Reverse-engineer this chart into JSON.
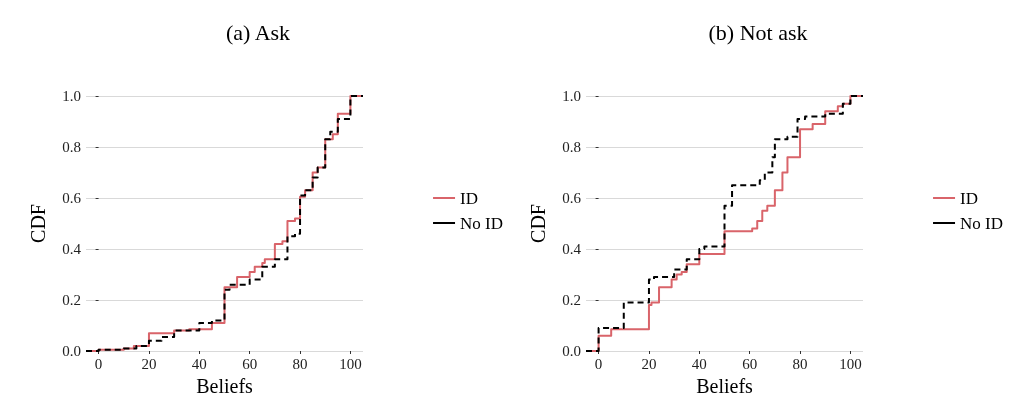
{
  "chart_data": [
    {
      "type": "step",
      "title": "(a) Ask",
      "xlabel": "Beliefs",
      "ylabel": "CDF",
      "xlim": [
        -5,
        105
      ],
      "xticks": [
        0,
        20,
        40,
        60,
        80,
        100
      ],
      "ylim": [
        0,
        1
      ],
      "yticks": [
        {
          "value": 0,
          "label": "0.0"
        },
        {
          "value": 0.2,
          "label": "0.2"
        },
        {
          "value": 0.4,
          "label": "0.4"
        },
        {
          "value": 0.6,
          "label": "0.6"
        },
        {
          "value": 0.8,
          "label": "0.8"
        },
        {
          "value": 1,
          "label": "1.0"
        }
      ],
      "grid": "y",
      "legend": "right",
      "series": [
        {
          "name": "ID",
          "color": "#d9646a",
          "line_style": "solid",
          "x": [
            -5,
            0,
            10,
            14,
            20,
            30,
            36,
            45,
            50,
            55,
            60,
            62,
            65,
            66,
            70,
            73,
            75,
            78,
            80,
            82,
            85,
            87,
            90,
            93,
            95,
            100,
            105
          ],
          "values": [
            0,
            0.005,
            0.01,
            0.02,
            0.07,
            0.08,
            0.085,
            0.11,
            0.25,
            0.29,
            0.31,
            0.33,
            0.345,
            0.36,
            0.42,
            0.43,
            0.51,
            0.52,
            0.605,
            0.63,
            0.7,
            0.72,
            0.83,
            0.85,
            0.93,
            1,
            1
          ]
        },
        {
          "name": "No ID",
          "color": "#000000",
          "line_style": "dashed",
          "x": [
            -5,
            0,
            10,
            15,
            20,
            25,
            30,
            40,
            45,
            50,
            52,
            60,
            65,
            70,
            75,
            78,
            80,
            82,
            85,
            87,
            90,
            92,
            95,
            100,
            105
          ],
          "values": [
            0,
            0.005,
            0.01,
            0.02,
            0.04,
            0.055,
            0.08,
            0.11,
            0.12,
            0.24,
            0.26,
            0.28,
            0.33,
            0.36,
            0.45,
            0.46,
            0.61,
            0.63,
            0.68,
            0.72,
            0.83,
            0.86,
            0.91,
            1,
            1
          ]
        }
      ]
    },
    {
      "type": "step",
      "title": "(b) Not ask",
      "xlabel": "Beliefs",
      "ylabel": "CDF",
      "xlim": [
        -5,
        105
      ],
      "xticks": [
        0,
        20,
        40,
        60,
        80,
        100
      ],
      "ylim": [
        0,
        1
      ],
      "yticks": [
        {
          "value": 0,
          "label": "0.0"
        },
        {
          "value": 0.2,
          "label": "0.2"
        },
        {
          "value": 0.4,
          "label": "0.4"
        },
        {
          "value": 0.6,
          "label": "0.6"
        },
        {
          "value": 0.8,
          "label": "0.8"
        },
        {
          "value": 1,
          "label": "1.0"
        }
      ],
      "grid": "y",
      "legend": "right",
      "series": [
        {
          "name": "ID",
          "color": "#d9646a",
          "line_style": "solid",
          "x": [
            -5,
            0,
            5,
            20,
            21,
            24,
            29,
            31,
            33,
            35,
            40,
            50,
            61,
            63,
            65,
            67,
            70,
            73,
            75,
            80,
            85,
            90,
            95,
            97,
            100,
            105
          ],
          "values": [
            0,
            0.06,
            0.085,
            0.18,
            0.19,
            0.25,
            0.28,
            0.3,
            0.31,
            0.34,
            0.38,
            0.47,
            0.48,
            0.51,
            0.55,
            0.57,
            0.63,
            0.7,
            0.76,
            0.87,
            0.89,
            0.94,
            0.96,
            0.97,
            1,
            1
          ]
        },
        {
          "name": "No ID",
          "color": "#000000",
          "line_style": "dashed",
          "x": [
            -5,
            0,
            10,
            20,
            22,
            30,
            35,
            40,
            42,
            50,
            53,
            64,
            66,
            69,
            70,
            75,
            79,
            82,
            90,
            97,
            100,
            105
          ],
          "values": [
            0,
            0.09,
            0.19,
            0.28,
            0.29,
            0.32,
            0.36,
            0.4,
            0.41,
            0.57,
            0.65,
            0.67,
            0.7,
            0.76,
            0.83,
            0.84,
            0.91,
            0.92,
            0.93,
            0.97,
            1,
            1
          ]
        }
      ]
    }
  ]
}
